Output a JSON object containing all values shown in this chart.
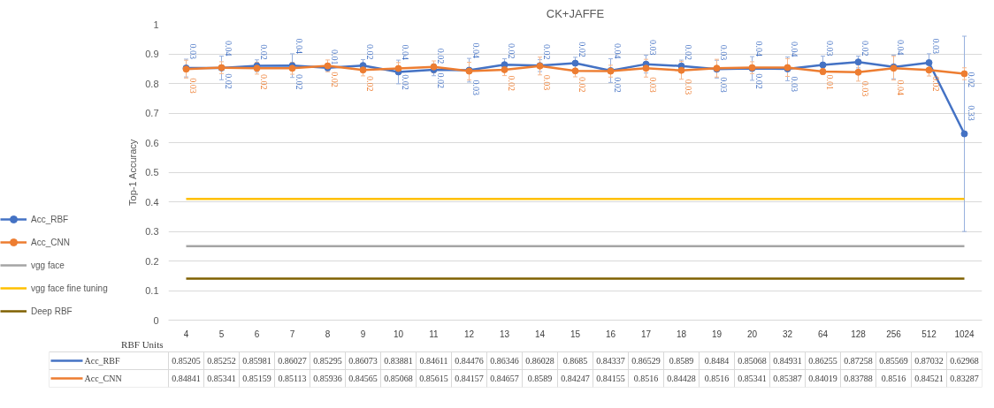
{
  "chart_data": {
    "type": "line",
    "title": "CK+JAFFE",
    "xlabel": "RBF Units",
    "ylabel": "Top-1 Accuracy",
    "categories": [
      "4",
      "5",
      "6",
      "7",
      "8",
      "9",
      "10",
      "11",
      "12",
      "13",
      "14",
      "15",
      "16",
      "17",
      "18",
      "19",
      "20",
      "32",
      "64",
      "128",
      "256",
      "512",
      "1024"
    ],
    "series": [
      {
        "name": "Acc_RBF",
        "color": "#4472c4",
        "marker": "circle",
        "values": [
          0.85205,
          0.85252,
          0.85981,
          0.86027,
          0.85295,
          0.86073,
          0.83881,
          0.84611,
          0.84476,
          0.86346,
          0.86028,
          0.8685,
          0.84337,
          0.86529,
          0.8589,
          0.8484,
          0.85068,
          0.84931,
          0.86255,
          0.87258,
          0.85569,
          0.87032,
          0.62968
        ],
        "errors": [
          0.03,
          0.04,
          0.02,
          0.04,
          0.01,
          0.02,
          0.04,
          0.02,
          0.04,
          0.02,
          0.02,
          0.02,
          0.04,
          0.03,
          0.02,
          0.03,
          0.04,
          0.04,
          0.03,
          0.02,
          0.04,
          0.03,
          0.33
        ],
        "value_labels": [
          "0.85205",
          "0.85252",
          "0.85981",
          "0.86027",
          "0.85295",
          "0.86073",
          "0.83881",
          "0.84611",
          "0.84476",
          "0.86346",
          "0.86028",
          "0.8685",
          "0.84337",
          "0.86529",
          "0.8589",
          "0.8484",
          "0.85068",
          "0.84931",
          "0.86255",
          "0.87258",
          "0.85569",
          "0.87032",
          "0.62968"
        ]
      },
      {
        "name": "Acc_CNN",
        "color": "#ed7d31",
        "marker": "circle",
        "values": [
          0.84841,
          0.85341,
          0.85159,
          0.85113,
          0.85936,
          0.84565,
          0.85068,
          0.85615,
          0.84157,
          0.84657,
          0.8589,
          0.84247,
          0.84155,
          0.8516,
          0.84428,
          0.8516,
          0.85341,
          0.85387,
          0.84019,
          0.83788,
          0.8516,
          0.84521,
          0.83287
        ],
        "errors": [
          0.03,
          0.02,
          0.02,
          0.02,
          0.02,
          0.02,
          0.02,
          0.02,
          0.03,
          0.02,
          0.03,
          0.02,
          0.02,
          0.03,
          0.03,
          0.03,
          0.02,
          0.03,
          0.01,
          0.03,
          0.04,
          0.02,
          0.02
        ],
        "value_labels": [
          "0.84841",
          "0.85341",
          "0.85159",
          "0.85113",
          "0.85936",
          "0.84565",
          "0.85068",
          "0.85615",
          "0.84157",
          "0.84657",
          "0.8589",
          "0.84247",
          "0.84155",
          "0.8516",
          "0.84428",
          "0.8516",
          "0.85341",
          "0.85387",
          "0.84019",
          "0.83788",
          "0.8516",
          "0.84521",
          "0.83287"
        ]
      },
      {
        "name": "vgg face",
        "color": "#a5a5a5",
        "marker": "none",
        "values": [
          0.25,
          0.25,
          0.25,
          0.25,
          0.25,
          0.25,
          0.25,
          0.25,
          0.25,
          0.25,
          0.25,
          0.25,
          0.25,
          0.25,
          0.25,
          0.25,
          0.25,
          0.25,
          0.25,
          0.25,
          0.25,
          0.25,
          0.25
        ]
      },
      {
        "name": "vgg face fine tuning",
        "color": "#ffc000",
        "marker": "none",
        "values": [
          0.41,
          0.41,
          0.41,
          0.41,
          0.41,
          0.41,
          0.41,
          0.41,
          0.41,
          0.41,
          0.41,
          0.41,
          0.41,
          0.41,
          0.41,
          0.41,
          0.41,
          0.41,
          0.41,
          0.41,
          0.41,
          0.41,
          0.41
        ]
      },
      {
        "name": "Deep RBF",
        "color": "#7f6000",
        "marker": "none",
        "values": [
          0.14,
          0.14,
          0.14,
          0.14,
          0.14,
          0.14,
          0.14,
          0.14,
          0.14,
          0.14,
          0.14,
          0.14,
          0.14,
          0.14,
          0.14,
          0.14,
          0.14,
          0.14,
          0.14,
          0.14,
          0.14,
          0.14,
          0.14
        ]
      }
    ],
    "annotations": [
      {
        "text": "0.03",
        "x": "4",
        "y": 0.88205
      },
      {
        "text": "0.04",
        "x": "5",
        "y": 0.89252
      },
      {
        "text": "0.02",
        "x": "6",
        "y": 0.87981
      },
      {
        "text": "0.04",
        "x": "7",
        "y": 0.90027
      },
      {
        "text": "0.01",
        "x": "8",
        "y": 0.86295
      },
      {
        "text": "0.02",
        "x": "9",
        "y": 0.88073
      },
      {
        "text": "0.04",
        "x": "10",
        "y": 0.87881
      },
      {
        "text": "0.02",
        "x": "11",
        "y": 0.86611
      },
      {
        "text": "0.04",
        "x": "12",
        "y": 0.88476
      },
      {
        "text": "0.02",
        "x": "13",
        "y": 0.88346
      },
      {
        "text": "0.02",
        "x": "14",
        "y": 0.88028
      },
      {
        "text": "0.02",
        "x": "15",
        "y": 0.8885
      },
      {
        "text": "0.04",
        "x": "16",
        "y": 0.88337
      },
      {
        "text": "0.03",
        "x": "17",
        "y": 0.89529
      },
      {
        "text": "0.02",
        "x": "18",
        "y": 0.8789
      },
      {
        "text": "0.03",
        "x": "19",
        "y": 0.8784
      },
      {
        "text": "0.04",
        "x": "20",
        "y": 0.89068
      },
      {
        "text": "0.04",
        "x": "32",
        "y": 0.88931
      },
      {
        "text": "0.03",
        "x": "64",
        "y": 0.89255
      },
      {
        "text": "0.02",
        "x": "128",
        "y": 0.89258
      },
      {
        "text": "0.04",
        "x": "256",
        "y": 0.89569
      },
      {
        "text": "0.03",
        "x": "512",
        "y": 0.90032
      },
      {
        "text": "0.33",
        "x": "1024",
        "y": 0.7
      },
      {
        "text": "0.03",
        "x": "4",
        "y": 0.81841
      },
      {
        "text": "0.02",
        "x": "5",
        "y": 0.83341
      },
      {
        "text": "0.02",
        "x": "6",
        "y": 0.83159
      },
      {
        "text": "0.02",
        "x": "7",
        "y": 0.83113
      },
      {
        "text": "0.02",
        "x": "8",
        "y": 0.83936
      },
      {
        "text": "0.02",
        "x": "9",
        "y": 0.82565
      },
      {
        "text": "0.02",
        "x": "10",
        "y": 0.83068
      },
      {
        "text": "0.02",
        "x": "11",
        "y": 0.83615
      },
      {
        "text": "0.03",
        "x": "12",
        "y": 0.81157
      },
      {
        "text": "0.02",
        "x": "13",
        "y": 0.82657
      },
      {
        "text": "0.03",
        "x": "14",
        "y": 0.8289
      },
      {
        "text": "0.02",
        "x": "15",
        "y": 0.82247
      },
      {
        "text": "0.02",
        "x": "16",
        "y": 0.82155
      },
      {
        "text": "0.03",
        "x": "17",
        "y": 0.8216
      },
      {
        "text": "0.03",
        "x": "18",
        "y": 0.81428
      },
      {
        "text": "0.03",
        "x": "19",
        "y": 0.8216
      },
      {
        "text": "0.02",
        "x": "20",
        "y": 0.83341
      },
      {
        "text": "0.03",
        "x": "32",
        "y": 0.82387
      },
      {
        "text": "0.01",
        "x": "64",
        "y": 0.83019
      },
      {
        "text": "0.03",
        "x": "128",
        "y": 0.80788
      },
      {
        "text": "0.04",
        "x": "256",
        "y": 0.8116
      },
      {
        "text": "0.02",
        "x": "512",
        "y": 0.82521
      },
      {
        "text": "0.02",
        "x": "1024",
        "y": 0.81287
      }
    ],
    "ylim": [
      0,
      1
    ],
    "yticks": [
      0,
      0.1,
      0.2,
      0.3,
      0.4,
      0.5,
      0.6,
      0.7,
      0.8,
      0.9,
      1
    ],
    "grid": "y",
    "legend": "left"
  }
}
